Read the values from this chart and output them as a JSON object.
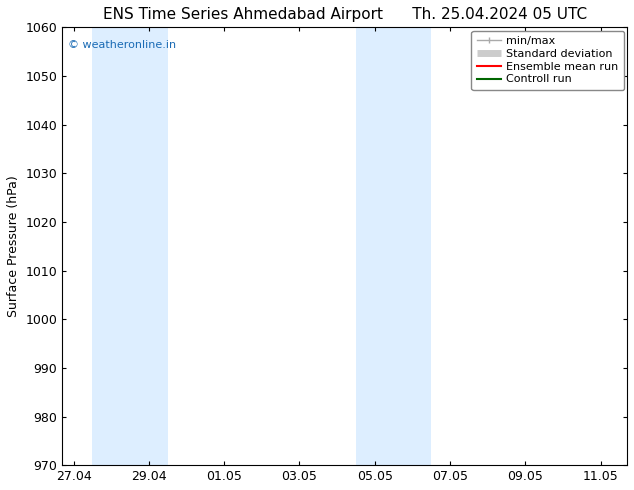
{
  "title_left": "ENS Time Series Ahmedabad Airport",
  "title_right": "Th. 25.04.2024 05 UTC",
  "ylabel": "Surface Pressure (hPa)",
  "ylim": [
    970,
    1060
  ],
  "yticks": [
    970,
    980,
    990,
    1000,
    1010,
    1020,
    1030,
    1040,
    1050,
    1060
  ],
  "x_tick_labels": [
    "27.04",
    "29.04",
    "01.05",
    "03.05",
    "05.05",
    "07.05",
    "09.05",
    "11.05"
  ],
  "x_tick_positions": [
    0,
    2,
    4,
    6,
    8,
    10,
    12,
    14
  ],
  "xlim": [
    -0.3,
    14.7
  ],
  "shaded_regions": [
    {
      "x_start": 0.5,
      "x_end": 2.5
    },
    {
      "x_start": 7.5,
      "x_end": 9.5
    }
  ],
  "shaded_color": "#ddeeff",
  "background_color": "#ffffff",
  "plot_bg_color": "#ffffff",
  "watermark_text": "© weatheronline.in",
  "watermark_color": "#1a6bb5",
  "legend_items": [
    {
      "label": "min/max",
      "color": "#aaaaaa",
      "lw": 1.0
    },
    {
      "label": "Standard deviation",
      "color": "#cccccc",
      "lw": 5
    },
    {
      "label": "Ensemble mean run",
      "color": "#ff0000",
      "lw": 1.5
    },
    {
      "label": "Controll run",
      "color": "#006600",
      "lw": 1.5
    }
  ],
  "title_fontsize": 11,
  "tick_label_fontsize": 9,
  "ylabel_fontsize": 9,
  "watermark_fontsize": 8,
  "legend_fontsize": 8
}
